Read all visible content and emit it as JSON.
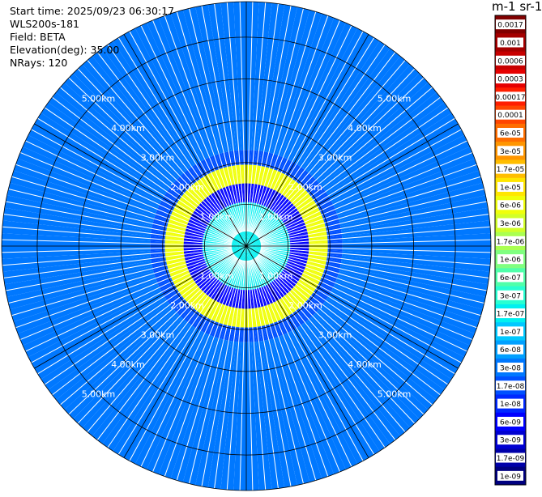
{
  "header": {
    "start_time": "Start time: 2025/09/23 06:30:17",
    "instrument": "WLS200s-181",
    "field": "Field: BETA",
    "elevation": "Elevation(deg): 35.00",
    "nrays": "NRays: 120"
  },
  "colorbar": {
    "unit_label": "m-1 sr-1",
    "labels": [
      "0.0017",
      "0.001",
      "0.0006",
      "0.0003",
      "0.00017",
      "0.0001",
      "6e-05",
      "3e-05",
      "1.7e-05",
      "1e-05",
      "6e-06",
      "3e-06",
      "1.7e-06",
      "1e-06",
      "6e-07",
      "3e-07",
      "1.7e-07",
      "1e-07",
      "6e-08",
      "3e-08",
      "1.7e-08",
      "1e-08",
      "6e-09",
      "3e-09",
      "1.7e-09",
      "1e-09"
    ],
    "colors": [
      "#800000",
      "#a50000",
      "#c80000",
      "#e60000",
      "#ff1e00",
      "#ff4600",
      "#ff6e00",
      "#ff9600",
      "#ffbe00",
      "#ffe600",
      "#f0ff0a",
      "#d2ff28",
      "#aaff50",
      "#80ff80",
      "#50ffaa",
      "#28ffd2",
      "#00f0f0",
      "#00c8ff",
      "#00a0ff",
      "#0078ff",
      "#0050ff",
      "#0028ff",
      "#0000ff",
      "#0000d2",
      "#0000aa",
      "#000080"
    ]
  },
  "chart_data": {
    "type": "ppi",
    "field": "BETA",
    "nrays": 120,
    "elevation_deg": 35.0,
    "range_ring_labels_km": [
      1.0,
      2.0,
      3.0,
      4.0,
      5.0
    ],
    "range_ring_labels": [
      "1.00km",
      "2.00km",
      "3.00km",
      "4.00km",
      "5.00km"
    ],
    "max_range_km": 5.85,
    "spoke_step_deg": 30,
    "colormap": "jet",
    "color_scale": "log",
    "color_range": [
      1e-09,
      0.0017
    ],
    "bands": [
      {
        "range_km": [
          0.0,
          1.05
        ],
        "value": 2e-07
      },
      {
        "range_km": [
          1.05,
          1.5
        ],
        "value": 6e-09
      },
      {
        "range_km": [
          1.5,
          1.95
        ],
        "value": 6e-06
      },
      {
        "range_km": [
          1.95,
          2.3
        ],
        "value": 1.7e-08
      },
      {
        "range_km": [
          2.3,
          5.85
        ],
        "value": 3e-08
      }
    ]
  }
}
